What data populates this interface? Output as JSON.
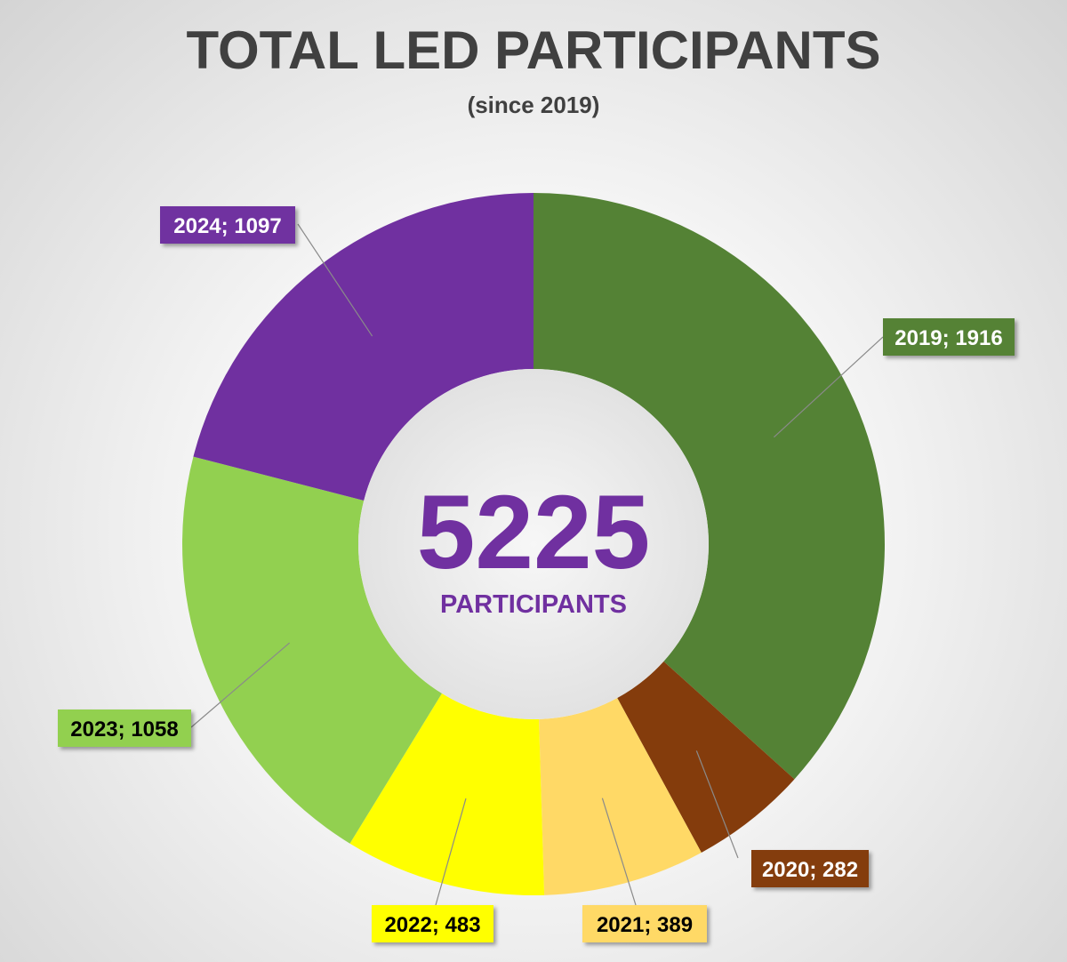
{
  "title": "TOTAL LED PARTICIPANTS",
  "subtitle": "(since 2019)",
  "center": {
    "total": "5225",
    "unit": "PARTICIPANTS"
  },
  "chart_data": {
    "type": "pie",
    "variant": "donut",
    "title": "TOTAL LED PARTICIPANTS",
    "subtitle": "(since 2019)",
    "categories": [
      "2019",
      "2020",
      "2021",
      "2022",
      "2023",
      "2024"
    ],
    "values": [
      1916,
      282,
      389,
      483,
      1058,
      1097
    ],
    "colors": [
      "#548235",
      "#843c0c",
      "#ffd966",
      "#ffff00",
      "#92d050",
      "#7030a0"
    ],
    "label_text_colors": [
      "#ffffff",
      "#ffffff",
      "#000000",
      "#000000",
      "#000000",
      "#ffffff"
    ],
    "data_labels": [
      "2019; 1916",
      "2020; 282",
      "2021; 389",
      "2022; 483",
      "2023; 1058",
      "2024; 1097"
    ],
    "legend": "none"
  }
}
